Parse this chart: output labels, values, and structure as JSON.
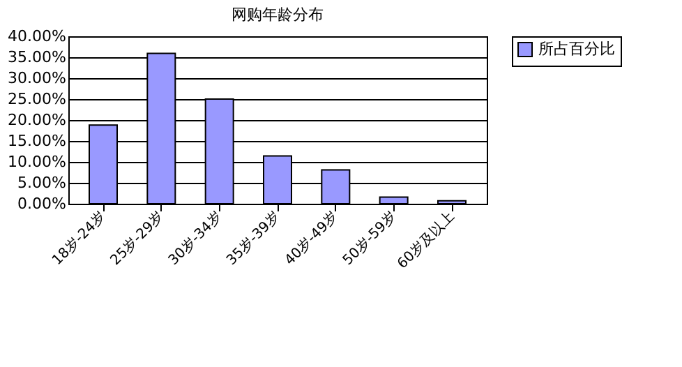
{
  "chart_data": {
    "type": "bar",
    "title": "网购年龄分布",
    "categories": [
      "18岁-24岁",
      "25岁-29岁",
      "30岁-34岁",
      "35岁-39岁",
      "40岁-49岁",
      "50岁-59岁",
      "60岁及以上"
    ],
    "series": [
      {
        "name": "所占百分比",
        "color": "#9999ff",
        "values": [
          18.8,
          35.9,
          25.0,
          11.4,
          8.1,
          1.6,
          0.7
        ]
      }
    ],
    "ylim": [
      0,
      40
    ],
    "yticks": [
      {
        "value": 0,
        "label": "0.00%"
      },
      {
        "value": 5,
        "label": "5.00%"
      },
      {
        "value": 10,
        "label": "10.00%"
      },
      {
        "value": 15,
        "label": "15.00%"
      },
      {
        "value": 20,
        "label": "20.00%"
      },
      {
        "value": 25,
        "label": "25.00%"
      },
      {
        "value": 30,
        "label": "30.00%"
      },
      {
        "value": 35,
        "label": "35.00%"
      },
      {
        "value": 40,
        "label": "40.00%"
      }
    ],
    "grid": "y",
    "legend": "right"
  }
}
